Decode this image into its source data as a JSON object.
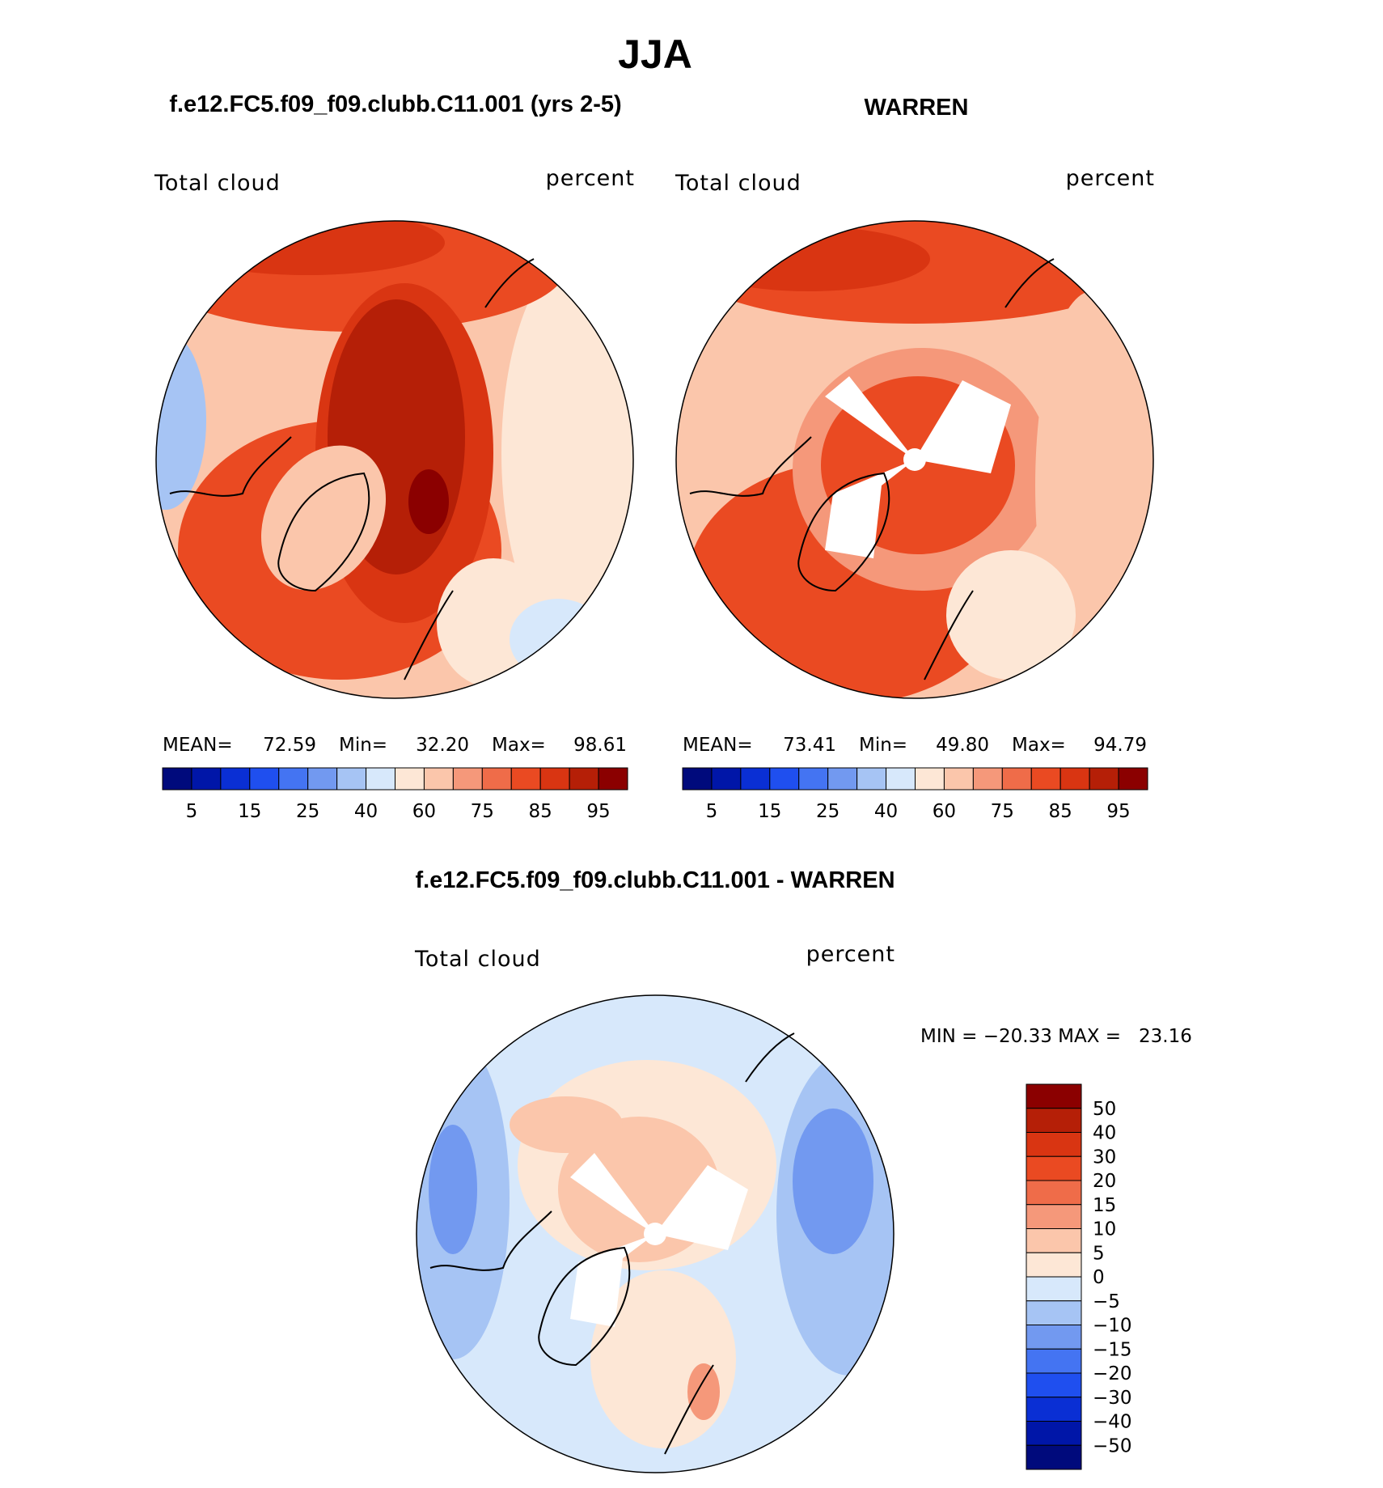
{
  "title": "JJA",
  "panels": [
    {
      "subtitle": "f.e12.FC5.f09_f09.clubb.C11.001 (yrs 2-5)",
      "left_label": "Total cloud",
      "right_label": "percent",
      "stats": [
        "MEAN=",
        "72.59",
        "Min=",
        "32.20",
        "Max=",
        "98.61"
      ]
    },
    {
      "subtitle": "WARREN",
      "left_label": "Total cloud",
      "right_label": "percent",
      "stats": [
        "MEAN=",
        "73.41",
        "Min=",
        "49.80",
        "Max=",
        "94.79"
      ]
    }
  ],
  "colorbar": {
    "labels": [
      "5",
      "15",
      "25",
      "40",
      "60",
      "75",
      "85",
      "95"
    ],
    "colors": [
      "#000a7c",
      "#0016a8",
      "#0a2fd4",
      "#1f4fef",
      "#4474f2",
      "#7299f0",
      "#a6c4f4",
      "#d7e8fb",
      "#fde7d6",
      "#fbc6ab",
      "#f5987a",
      "#ef6c49",
      "#ea4a22",
      "#d93512",
      "#b51f07",
      "#8b0000"
    ]
  },
  "difference": {
    "title": "f.e12.FC5.f09_f09.clubb.C11.001 - WARREN",
    "left_label": "Total cloud",
    "right_label": "percent",
    "stats": "MIN = −20.33 MAX =   23.16",
    "colorbar": {
      "labels": [
        "50",
        "40",
        "30",
        "20",
        "15",
        "10",
        "5",
        "0",
        "−5",
        "−10",
        "−15",
        "−20",
        "−30",
        "−40",
        "−50"
      ],
      "colors": [
        "#8b0000",
        "#b51f07",
        "#d93512",
        "#ea4a22",
        "#ef6c49",
        "#f5987a",
        "#fbc6ab",
        "#fde7d6",
        "#d7e8fb",
        "#a6c4f4",
        "#7299f0",
        "#4474f2",
        "#1f4fef",
        "#0a2fd4",
        "#0016a8",
        "#000a7c"
      ]
    }
  }
}
